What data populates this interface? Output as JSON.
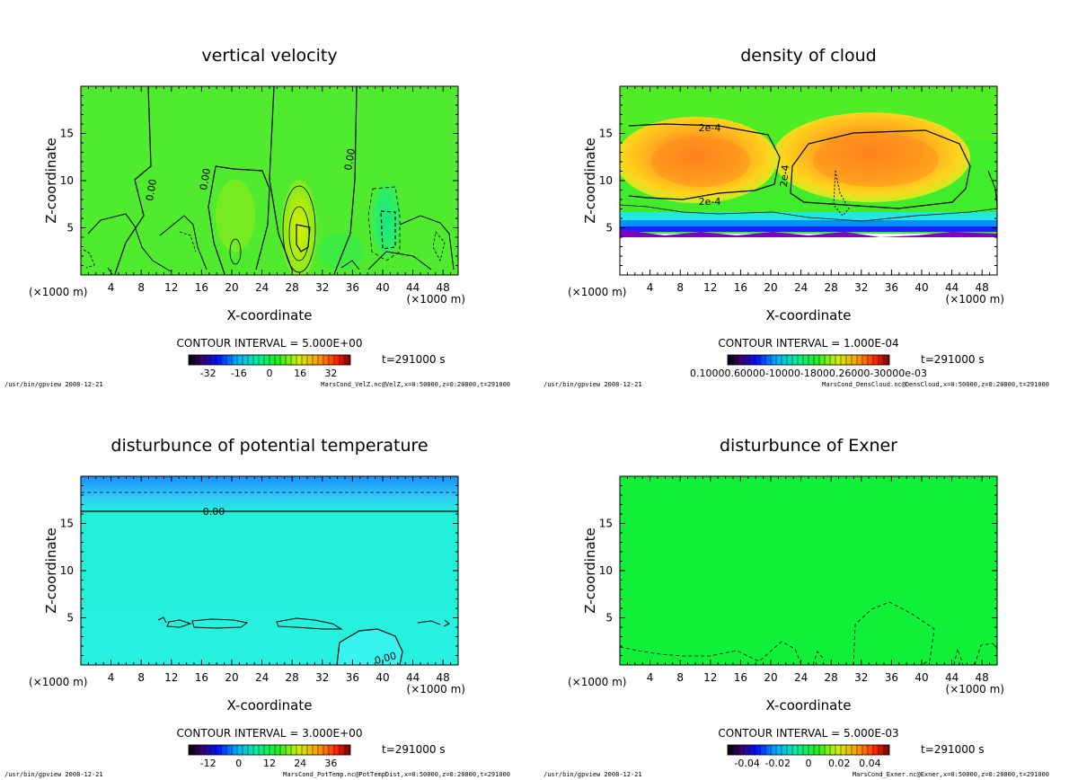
{
  "chart_data": [
    {
      "type": "heatmap",
      "title": "vertical velocity",
      "xlabel": "X-coordinate",
      "ylabel": "Z-coordinate",
      "x_unit": "(×1000 m)",
      "x_unit_right": "(×1000 m)",
      "xlim": [
        0,
        50
      ],
      "ylim": [
        0,
        20
      ],
      "xticks": [
        4,
        8,
        12,
        16,
        20,
        24,
        28,
        32,
        36,
        40,
        44,
        48
      ],
      "yticks": [
        5,
        10,
        15
      ],
      "contour_interval": "CONTOUR INTERVAL = 5.000E+00",
      "time_label": "t=291000 s",
      "colorbar_ticks": [
        "-32",
        "-16",
        "0",
        "16",
        "32"
      ],
      "contour_labels": [
        "0.00",
        "0.00",
        "0.00"
      ],
      "footer_left": "/usr/bin/gpview   2008-12-21",
      "footer_right": "MarsCond_VelZ.nc@VelZ,x=0:50000,z=0:20000,t=291000"
    },
    {
      "type": "heatmap",
      "title": "density of cloud",
      "xlabel": "X-coordinate",
      "ylabel": "Z-coordinate",
      "x_unit": "(×1000 m)",
      "x_unit_right": "(×1000 m)",
      "xlim": [
        0,
        50
      ],
      "ylim": [
        0,
        20
      ],
      "xticks": [
        4,
        8,
        12,
        16,
        20,
        24,
        28,
        32,
        36,
        40,
        44,
        48
      ],
      "yticks": [
        5,
        10,
        15
      ],
      "contour_interval": "CONTOUR INTERVAL = 1.000E-04",
      "time_label": "t=291000 s",
      "colorbar_ticks": [
        "0.10000.60000-10000-18000.26000-30000e-03"
      ],
      "contour_labels": [
        "2e-4",
        "2e-4",
        "2e-4"
      ],
      "footer_left": "/usr/bin/gpview   2008-12-21",
      "footer_right": "MarsCond_DensCloud.nc@DensCloud,x=0:50000,z=0:20000,t=291000"
    },
    {
      "type": "heatmap",
      "title": "disturbunce of potential temperature",
      "xlabel": "X-coordinate",
      "ylabel": "Z-coordinate",
      "x_unit": "(×1000 m)",
      "x_unit_right": "(×1000 m)",
      "xlim": [
        0,
        50
      ],
      "ylim": [
        0,
        20
      ],
      "xticks": [
        4,
        8,
        12,
        16,
        20,
        24,
        28,
        32,
        36,
        40,
        44,
        48
      ],
      "yticks": [
        5,
        10,
        15
      ],
      "contour_interval": "CONTOUR INTERVAL = 3.000E+00",
      "time_label": "t=291000 s",
      "colorbar_ticks": [
        "-12",
        "0",
        "12",
        "24",
        "36"
      ],
      "contour_labels": [
        "0.00",
        "0.00"
      ],
      "footer_left": "/usr/bin/gpview   2008-12-21",
      "footer_right": "MarsCond_PotTemp.nc@PotTempDist,x=0:50000,z=0:20000,t=291000"
    },
    {
      "type": "heatmap",
      "title": "disturbunce of Exner",
      "xlabel": "X-coordinate",
      "ylabel": "Z-coordinate",
      "x_unit": "(×1000 m)",
      "x_unit_right": "(×1000 m)",
      "xlim": [
        0,
        50
      ],
      "ylim": [
        0,
        20
      ],
      "xticks": [
        4,
        8,
        12,
        16,
        20,
        24,
        28,
        32,
        36,
        40,
        44,
        48
      ],
      "yticks": [
        5,
        10,
        15
      ],
      "contour_interval": "CONTOUR INTERVAL = 5.000E-03",
      "time_label": "t=291000 s",
      "colorbar_ticks": [
        "-0.04",
        "-0.02",
        "0",
        "0.02",
        "0.04"
      ],
      "contour_labels": [],
      "footer_left": "/usr/bin/gpview   2008-12-21",
      "footer_right": "MarsCond_Exner.nc@Exner,x=0:50000,z=0:20000,t=291000"
    }
  ]
}
